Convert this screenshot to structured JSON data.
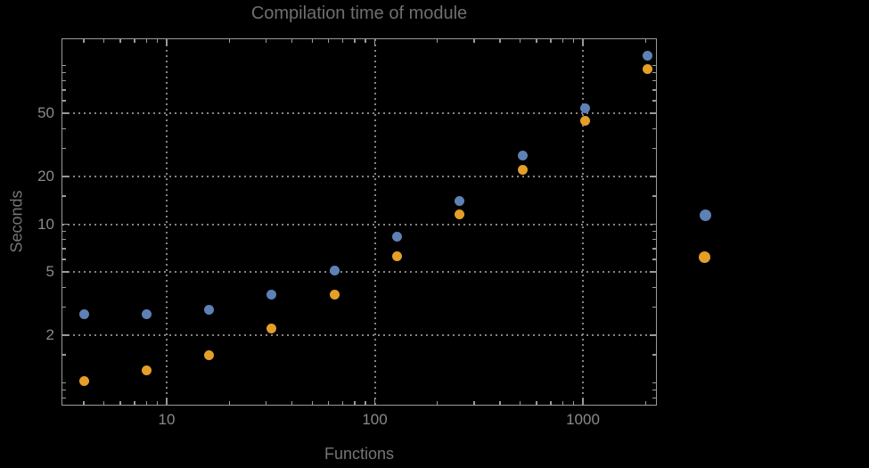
{
  "chart_data": {
    "type": "scatter",
    "title": "Compilation time of module",
    "xlabel": "Functions",
    "ylabel": "Seconds",
    "x_scale": "log",
    "y_scale": "log",
    "x_range": [
      3.1,
      2300
    ],
    "y_range": [
      0.72,
      150
    ],
    "grid": true,
    "frame": true,
    "x_major_ticks": [
      10,
      100,
      1000
    ],
    "x_major_labels": [
      "10",
      "100",
      "1000"
    ],
    "x_minor_ticks": [
      4,
      5,
      6,
      7,
      8,
      9,
      20,
      30,
      40,
      50,
      60,
      70,
      80,
      90,
      200,
      300,
      400,
      500,
      600,
      700,
      800,
      900,
      2000
    ],
    "y_major_ticks": [
      2,
      5,
      10,
      20,
      50
    ],
    "y_major_labels": [
      "2",
      "5",
      "10",
      "20",
      "50"
    ],
    "y_minor_ticks": [
      0.8,
      0.9,
      1,
      1.5,
      3,
      4,
      6,
      7,
      8,
      9,
      15,
      30,
      40,
      60,
      70,
      80,
      90,
      100
    ],
    "x": [
      4,
      8,
      16,
      32,
      64,
      128,
      256,
      512,
      1024,
      2048
    ],
    "series": [
      {
        "label": "",
        "color": "#5e81b5",
        "values": [
          2.7,
          2.7,
          2.9,
          3.6,
          5.1,
          8.3,
          14,
          27,
          54,
          116
        ]
      },
      {
        "label": "",
        "color": "#e49f28",
        "values": [
          1.03,
          1.2,
          1.5,
          2.2,
          3.6,
          6.3,
          11.6,
          22,
          45,
          95
        ]
      }
    ],
    "legend": {
      "position": "right-of-plot",
      "markers": [
        {
          "color": "#5e81b5",
          "label": ""
        },
        {
          "color": "#e49f28",
          "label": ""
        }
      ]
    }
  },
  "colors": {
    "background": "#000000",
    "frame": "#9a9a9a",
    "gridline": "#848484",
    "title_text": "#6f6f6f",
    "axis_label_text": "#757575",
    "tick_label_text": "#8a8a8a"
  }
}
